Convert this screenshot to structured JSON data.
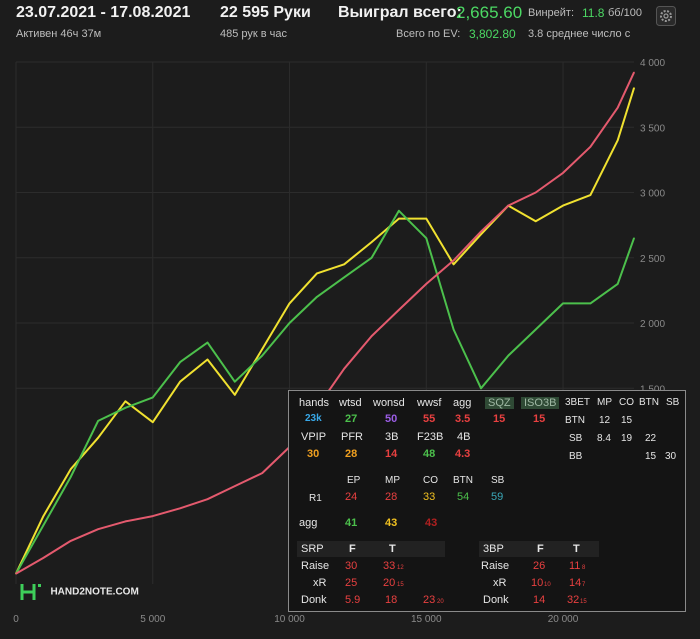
{
  "header": {
    "dates": "23.07.2021 - 17.08.2021",
    "active": "Активен 46ч 37м",
    "hands": "22 595 Руки",
    "per_hour": "485 рук в час",
    "won_label": "Выиграл всего:",
    "won_value": "2,665.60",
    "ev_label": "Всего по EV:",
    "ev_value": "3,802.80",
    "winrate_label": "Винрейт:",
    "winrate_value": "11.8",
    "winrate_unit": "бб/100",
    "avg_text": "3.8 среднее число с"
  },
  "logo_text": "HAND2NOTE.COM",
  "chart_data": {
    "type": "line",
    "xlim": [
      0,
      22595
    ],
    "ylim": [
      0,
      4000
    ],
    "x_ticks": [
      "0",
      "5 000",
      "10 000",
      "15 000",
      "20 000"
    ],
    "y_ticks": [
      "1 500",
      "2 000",
      "2 500",
      "3 000",
      "3 500",
      "4 000"
    ],
    "grid": true,
    "series": [
      {
        "color": "#f0e130",
        "x": [
          0,
          1000,
          2000,
          3000,
          4000,
          5000,
          6000,
          7000,
          8000,
          9000,
          10000,
          11000,
          12000,
          13000,
          14000,
          15000,
          16000,
          17000,
          18000,
          19000,
          20000,
          21000,
          22000,
          22595
        ],
        "values": [
          80,
          520,
          880,
          1120,
          1400,
          1240,
          1550,
          1720,
          1450,
          1800,
          2150,
          2380,
          2450,
          2620,
          2800,
          2800,
          2450,
          2680,
          2900,
          2780,
          2900,
          2980,
          3400,
          3800
        ]
      },
      {
        "color": "#4cc04c",
        "x": [
          0,
          1000,
          2000,
          3000,
          4000,
          5000,
          6000,
          7000,
          8000,
          9000,
          10000,
          11000,
          12000,
          13000,
          14000,
          15000,
          16000,
          17000,
          18000,
          19000,
          20000,
          21000,
          22000,
          22595
        ],
        "values": [
          80,
          450,
          820,
          1250,
          1350,
          1430,
          1700,
          1850,
          1550,
          1750,
          2000,
          2200,
          2350,
          2500,
          2860,
          2650,
          1950,
          1500,
          1750,
          1950,
          2150,
          2150,
          2300,
          2650
        ]
      },
      {
        "color": "#e45a6e",
        "x": [
          0,
          1000,
          2000,
          3000,
          4000,
          5000,
          6000,
          7000,
          8000,
          9000,
          10000,
          11000,
          12000,
          13000,
          14000,
          15000,
          16000,
          17000,
          18000,
          19000,
          20000,
          21000,
          22000,
          22595
        ],
        "values": [
          80,
          200,
          330,
          420,
          480,
          520,
          580,
          650,
          750,
          850,
          1050,
          1350,
          1650,
          1900,
          2100,
          2300,
          2480,
          2700,
          2900,
          3000,
          3150,
          3350,
          3650,
          3920
        ]
      }
    ]
  },
  "stats": {
    "row1_labels": [
      "hands",
      "wtsd",
      "wonsd",
      "wwsf",
      "agg",
      "SQZ",
      "ISO3B"
    ],
    "row1_values": [
      "23k",
      "27",
      "50",
      "55",
      "3.5",
      "15",
      "15"
    ],
    "row2_labels": [
      "VPIP",
      "PFR",
      "3B",
      "F23B",
      "4B"
    ],
    "row2_values": [
      "30",
      "28",
      "14",
      "48",
      "4.3"
    ],
    "pos_labels": [
      "EP",
      "MP",
      "CO",
      "BTN",
      "SB"
    ],
    "r1_label": "R1",
    "r1_values": [
      "24",
      "28",
      "33",
      "54",
      "59"
    ],
    "agg_label": "agg",
    "agg_values": [
      "41",
      "43",
      "43"
    ],
    "grid3bet": {
      "header": [
        "3BET",
        "MP",
        "CO",
        "BTN",
        "SB"
      ],
      "rows": [
        [
          "BTN",
          "12",
          "15",
          "",
          ""
        ],
        [
          "SB",
          "8.4",
          "19",
          "22",
          ""
        ],
        [
          "BB",
          "",
          "",
          "15",
          "30"
        ]
      ]
    },
    "srp": {
      "title": "SRP",
      "cols": [
        "F",
        "T"
      ],
      "rows": [
        {
          "label": "Raise",
          "f": "30",
          "t": "33",
          "t_sub": "12"
        },
        {
          "label": "xR",
          "f": "25",
          "t": "20",
          "t_sub": "15"
        },
        {
          "label": "Donk",
          "f": "5.9",
          "t": "18",
          "extra": "23",
          "extra_sub": "20"
        }
      ]
    },
    "bp3": {
      "title": "3BP",
      "cols": [
        "F",
        "T"
      ],
      "rows": [
        {
          "label": "Raise",
          "f": "26",
          "t": "11",
          "t_sub": "8"
        },
        {
          "label": "xR",
          "f": "10",
          "f_sub": "10",
          "t": "14",
          "t_sub": "7"
        },
        {
          "label": "Donk",
          "f": "14",
          "t": "32",
          "t_sub": "15"
        }
      ]
    }
  }
}
